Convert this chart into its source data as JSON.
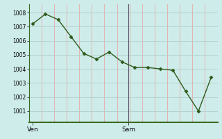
{
  "x_values": [
    0,
    1,
    2,
    3,
    4,
    5,
    6,
    7,
    8,
    9,
    10,
    11,
    12,
    13,
    14
  ],
  "y_values": [
    1007.2,
    1007.9,
    1007.5,
    1006.3,
    1005.1,
    1004.7,
    1005.2,
    1004.5,
    1004.1,
    1004.1,
    1004.0,
    1003.9,
    1002.4,
    1001.0,
    1003.4
  ],
  "ven_x": 0.0,
  "sam_x": 7.5,
  "ven_label": "Ven",
  "sam_label": "Sam",
  "yticks": [
    1001,
    1002,
    1003,
    1004,
    1005,
    1006,
    1007,
    1008
  ],
  "ymin": 1000.2,
  "ymax": 1008.6,
  "xmin": -0.3,
  "xmax": 14.5,
  "line_color": "#2d5a1b",
  "marker_color": "#2d5a1b",
  "bg_color": "#ceecea",
  "vgrid_color": "#e8aaaa",
  "hgrid_color": "#afd0cc",
  "divider_color": "#555566",
  "bottom_spine_color": "#3a6a20",
  "left_spine_color": "#3a6a20",
  "divider_x": 7.5,
  "n_vgrid": 16
}
